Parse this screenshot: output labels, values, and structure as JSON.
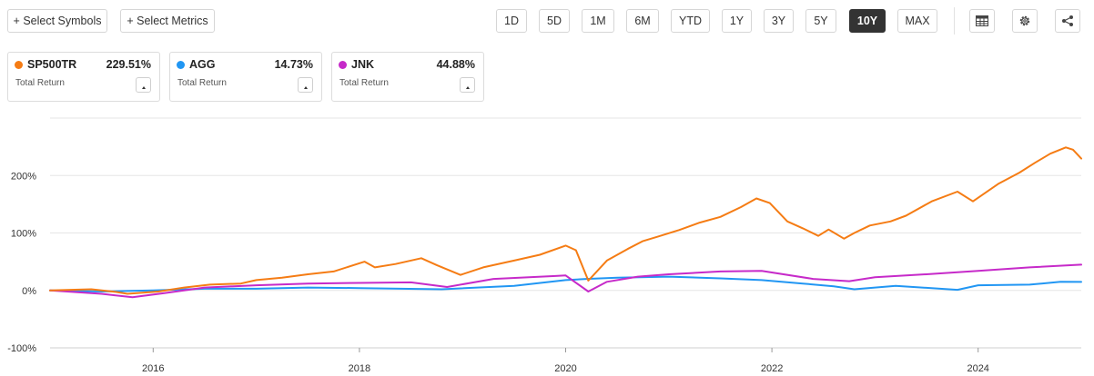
{
  "toolbar": {
    "select_symbols": "+ Select Symbols",
    "select_metrics": "+ Select Metrics",
    "ranges": [
      "1D",
      "5D",
      "1M",
      "6M",
      "YTD",
      "1Y",
      "3Y",
      "5Y",
      "10Y",
      "MAX"
    ],
    "active_range": "10Y",
    "icons": [
      "table-icon",
      "gear-icon",
      "share-icon"
    ]
  },
  "cards": [
    {
      "symbol": "SP500TR",
      "value": "229.51%",
      "metric": "Total Return",
      "color": "#f57c14"
    },
    {
      "symbol": "AGG",
      "value": "14.73%",
      "metric": "Total Return",
      "color": "#2196f3"
    },
    {
      "symbol": "JNK",
      "value": "44.88%",
      "metric": "Total Return",
      "color": "#c62ac9"
    }
  ],
  "chart_data": {
    "type": "line",
    "y_tick_labels": [
      "200%",
      "100%",
      "0%",
      "-100%"
    ],
    "y_tick_values": [
      200,
      100,
      0,
      -100
    ],
    "x_tick_labels": [
      "2016",
      "2018",
      "2020",
      "2022",
      "2024"
    ],
    "x_tick_values": [
      2016,
      2018,
      2020,
      2022,
      2024
    ],
    "xlim": [
      2015.0,
      2025.0
    ],
    "ylim": [
      -100,
      300
    ],
    "grid": "horizontal",
    "series": [
      {
        "name": "SP500TR",
        "color": "#f57c14",
        "x": [
          2015.0,
          2015.4,
          2015.65,
          2015.75,
          2016.05,
          2016.3,
          2016.55,
          2016.85,
          2017.0,
          2017.25,
          2017.5,
          2017.75,
          2018.05,
          2018.15,
          2018.35,
          2018.6,
          2018.75,
          2018.98,
          2019.2,
          2019.4,
          2019.5,
          2019.75,
          2020.0,
          2020.1,
          2020.22,
          2020.4,
          2020.6,
          2020.75,
          2020.9,
          2021.1,
          2021.3,
          2021.5,
          2021.7,
          2021.85,
          2021.98,
          2022.15,
          2022.3,
          2022.45,
          2022.55,
          2022.7,
          2022.8,
          2022.95,
          2023.15,
          2023.3,
          2023.55,
          2023.8,
          2023.95,
          2024.2,
          2024.4,
          2024.55,
          2024.7,
          2024.85,
          2024.92,
          2025.0
        ],
        "y": [
          0,
          2,
          -3,
          -6,
          -2,
          5,
          10,
          12,
          18,
          22,
          28,
          33,
          50,
          40,
          46,
          56,
          44,
          27,
          40,
          48,
          52,
          62,
          78,
          70,
          17,
          52,
          72,
          86,
          94,
          105,
          118,
          128,
          145,
          160,
          152,
          120,
          108,
          95,
          106,
          90,
          100,
          113,
          120,
          130,
          155,
          172,
          155,
          186,
          205,
          222,
          238,
          249,
          245,
          229.51
        ]
      },
      {
        "name": "AGG",
        "color": "#2196f3",
        "x": [
          2015.0,
          2015.5,
          2016.0,
          2016.5,
          2017.0,
          2017.5,
          2018.0,
          2018.8,
          2019.5,
          2020.0,
          2020.2,
          2020.5,
          2021.0,
          2021.5,
          2021.9,
          2022.3,
          2022.6,
          2022.8,
          2023.2,
          2023.8,
          2024.0,
          2024.5,
          2024.8,
          2025.0
        ],
        "y": [
          0,
          -2,
          0,
          3,
          3,
          5,
          4,
          2,
          8,
          18,
          20,
          22,
          24,
          21,
          18,
          12,
          7,
          2,
          8,
          1,
          9,
          10,
          15,
          14.73
        ]
      },
      {
        "name": "JNK",
        "color": "#c62ac9",
        "x": [
          2015.0,
          2015.5,
          2015.8,
          2016.1,
          2016.5,
          2017.0,
          2017.5,
          2018.0,
          2018.5,
          2018.85,
          2019.3,
          2019.9,
          2020.0,
          2020.22,
          2020.4,
          2020.7,
          2021.0,
          2021.5,
          2021.9,
          2022.4,
          2022.75,
          2023.0,
          2023.5,
          2024.0,
          2024.5,
          2025.0
        ],
        "y": [
          0,
          -6,
          -12,
          -5,
          5,
          9,
          12,
          13,
          14,
          6,
          20,
          25,
          26,
          -2,
          15,
          24,
          28,
          33,
          34,
          20,
          16,
          23,
          28,
          34,
          40,
          44.88
        ]
      }
    ]
  }
}
